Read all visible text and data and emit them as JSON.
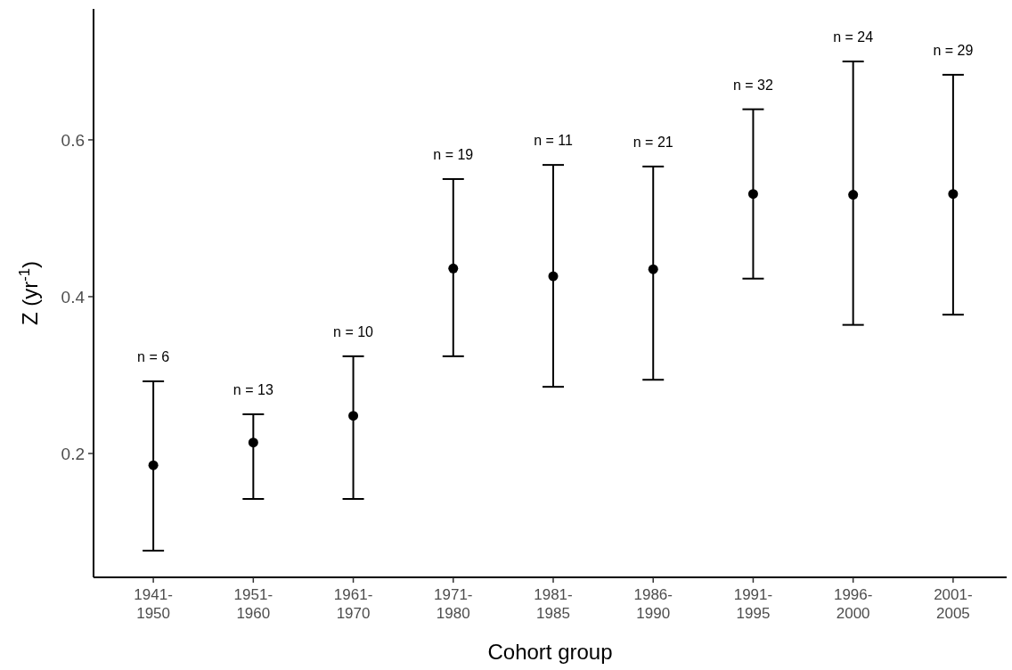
{
  "chart_data": {
    "type": "scatter",
    "xlabel": "Cohort group",
    "ylabel": "Z (yr$^{-1}$)",
    "categories": [
      "1941-1950",
      "1951-1960",
      "1961-1970",
      "1971-1980",
      "1981-1985",
      "1986-1990",
      "1991-1995",
      "1996-2000",
      "2001-2005"
    ],
    "values": [
      0.185,
      0.214,
      0.248,
      0.436,
      0.426,
      0.435,
      0.531,
      0.53,
      0.531
    ],
    "errors": [
      [
        0.076,
        0.292
      ],
      [
        0.142,
        0.25
      ],
      [
        0.142,
        0.324
      ],
      [
        0.324,
        0.55
      ],
      [
        0.285,
        0.568
      ],
      [
        0.294,
        0.566
      ],
      [
        0.423,
        0.639
      ],
      [
        0.364,
        0.7
      ],
      [
        0.377,
        0.683
      ]
    ],
    "color": "#000000",
    "marker": "circle",
    "grid": false,
    "ylim": [
      0.042,
      0.767
    ],
    "yticks": [
      0.2,
      0.4,
      0.6
    ],
    "annotations": [
      "n = 6",
      "n = 13",
      "n = 10",
      "n = 19",
      "n = 11",
      "n = 21",
      "n = 32",
      "n = 24",
      "n = 29"
    ]
  }
}
